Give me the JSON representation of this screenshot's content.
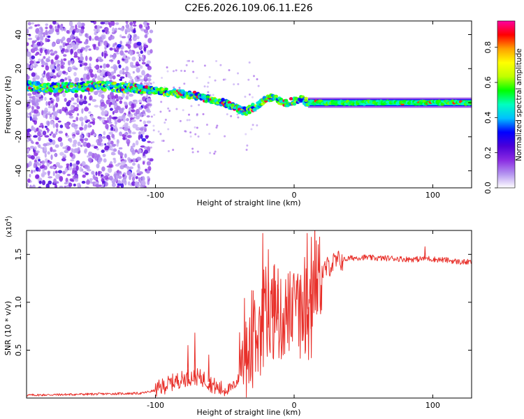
{
  "title": "C2E6.2026.109.06.11.E26",
  "chart_data": [
    {
      "type": "heatmap",
      "name": "spectrogram",
      "xlabel": "Height of straight line (km)",
      "ylabel": "Frequency (Hz)",
      "xlim": [
        -193,
        128
      ],
      "ylim": [
        -50,
        48
      ],
      "x_ticks": [
        -100,
        0,
        100
      ],
      "y_ticks": [
        -40,
        -20,
        0,
        20,
        40
      ],
      "ridge": {
        "x": [
          -193,
          -180,
          -160,
          -140,
          -125,
          -110,
          -100,
          -90,
          -80,
          -70,
          -60,
          -50,
          -45,
          -40,
          -35,
          -30,
          -25,
          -20,
          -15,
          -10,
          -5,
          0,
          5,
          10,
          20,
          40,
          60,
          80,
          100,
          128
        ],
        "freq": [
          10,
          9,
          9,
          10,
          9,
          8,
          7,
          6,
          5,
          4,
          2,
          0,
          -2,
          -4,
          -5,
          -3,
          -1,
          2,
          3,
          1,
          0,
          1,
          2,
          0,
          0,
          0,
          0,
          0,
          0,
          0
        ]
      },
      "colorbar": {
        "label": "Normalized spectral amplitude",
        "range": [
          0,
          0.95
        ],
        "ticks": [
          "0.0",
          "0.2",
          "0.4",
          "0.6",
          "0.8"
        ],
        "tick_values": [
          0,
          0.2,
          0.4,
          0.6,
          0.8
        ],
        "colors": [
          "#ffffff",
          "#b494f0",
          "#8a2be2",
          "#4b00d9",
          "#0000ff",
          "#00c0ff",
          "#00ffc0",
          "#00ff00",
          "#c0ff00",
          "#ffff00",
          "#ffa000",
          "#ff0000",
          "#ff00a0"
        ]
      }
    },
    {
      "type": "line",
      "name": "snr",
      "xlabel": "Height of straight line (km)",
      "ylabel": "SNR (10 * v/v)",
      "y_multiplier": "(x10",
      "y_multiplier_exp": "4",
      "y_multiplier_close": ")",
      "xlim": [
        -193,
        128
      ],
      "ylim": [
        0,
        1.75
      ],
      "x_ticks": [
        -100,
        0,
        100
      ],
      "y_ticks": [
        0.5,
        1.0,
        1.5
      ],
      "y_tick_labels": [
        "0.5",
        "1.0",
        "1.5"
      ],
      "color": "#e8302a",
      "x": [
        -193,
        -150,
        -110,
        -100,
        -95,
        -90,
        -85,
        -80,
        -75,
        -70,
        -65,
        -60,
        -55,
        -50,
        -45,
        -40,
        -35,
        -30,
        -25,
        -20,
        -15,
        -10,
        -5,
        0,
        5,
        10,
        15,
        20,
        25,
        30,
        40,
        50,
        60,
        70,
        80,
        90,
        95,
        100,
        110,
        120,
        128
      ],
      "values": [
        0.03,
        0.04,
        0.05,
        0.08,
        0.12,
        0.15,
        0.18,
        0.2,
        0.22,
        0.22,
        0.2,
        0.15,
        0.1,
        0.09,
        0.1,
        0.2,
        0.4,
        0.5,
        0.65,
        0.75,
        0.85,
        0.8,
        0.9,
        0.9,
        0.85,
        0.95,
        1.2,
        1.3,
        1.38,
        1.42,
        1.46,
        1.47,
        1.46,
        1.46,
        1.45,
        1.45,
        1.46,
        1.45,
        1.44,
        1.42,
        1.42
      ],
      "spikes": [
        {
          "x": -23,
          "y": 1.72
        },
        {
          "x": -19,
          "y": 1.55
        },
        {
          "x": -15,
          "y": 1.38
        },
        {
          "x": -12,
          "y": 1.35
        },
        {
          "x": 9,
          "y": 1.72
        },
        {
          "x": 12,
          "y": 1.68
        },
        {
          "x": -72,
          "y": 0.68
        },
        {
          "x": -62,
          "y": 0.45
        },
        {
          "x": -77,
          "y": 0.55
        },
        {
          "x": 10,
          "y": 0.4
        },
        {
          "x": 12,
          "y": 0.42
        },
        {
          "x": 94,
          "y": 1.58
        }
      ]
    }
  ]
}
